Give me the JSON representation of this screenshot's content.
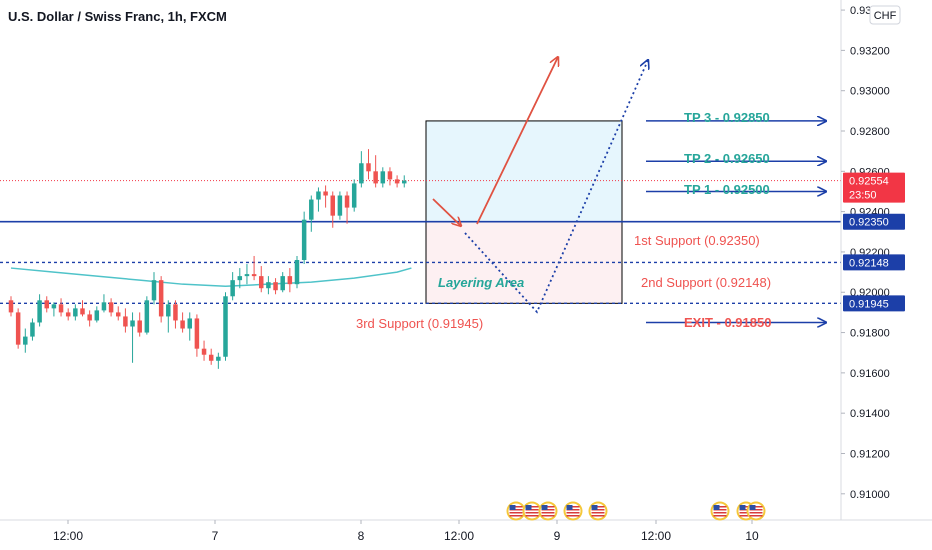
{
  "chart_data": {
    "type": "candlestick",
    "title": "U.S. Dollar / Swiss Franc, 1h, FXCM",
    "currency_label": "CHF",
    "ylim": [
      0.9087,
      0.9345
    ],
    "y_ticks": [
      {
        "value": 0.934,
        "label": "0.93400"
      },
      {
        "value": 0.932,
        "label": "0.93200"
      },
      {
        "value": 0.93,
        "label": "0.93000"
      },
      {
        "value": 0.928,
        "label": "0.92800"
      },
      {
        "value": 0.926,
        "label": "0.92600"
      },
      {
        "value": 0.924,
        "label": "0.92400"
      },
      {
        "value": 0.922,
        "label": "0.92200"
      },
      {
        "value": 0.92,
        "label": "0.92000"
      },
      {
        "value": 0.918,
        "label": "0.91800"
      },
      {
        "value": 0.916,
        "label": "0.91600"
      },
      {
        "value": 0.914,
        "label": "0.91400"
      },
      {
        "value": 0.912,
        "label": "0.91200"
      },
      {
        "value": 0.91,
        "label": "0.91000"
      }
    ],
    "x_ticks": [
      "12:00",
      "7",
      "8",
      "12:00",
      "9",
      "12:00",
      "10"
    ],
    "current_price": {
      "value": 0.92554,
      "label": "0.92554",
      "countdown": "23:50"
    },
    "price_badges": [
      {
        "value": 0.9235,
        "label": "0.92350"
      },
      {
        "value": 0.92148,
        "label": "0.92148"
      },
      {
        "value": 0.91945,
        "label": "0.91945"
      }
    ],
    "horizontal_levels": [
      {
        "value": 0.9235,
        "style": "solid",
        "color": "#1c3fa8"
      },
      {
        "value": 0.92148,
        "style": "dashed",
        "color": "#1c3fa8"
      },
      {
        "value": 0.91945,
        "style": "dashed",
        "color": "#1c3fa8"
      }
    ],
    "candles": [
      {
        "o": 0.9196,
        "h": 0.9198,
        "l": 0.9188,
        "c": 0.919
      },
      {
        "o": 0.919,
        "h": 0.9192,
        "l": 0.9172,
        "c": 0.9174
      },
      {
        "o": 0.9174,
        "h": 0.9182,
        "l": 0.917,
        "c": 0.9178
      },
      {
        "o": 0.9178,
        "h": 0.9187,
        "l": 0.9176,
        "c": 0.9185
      },
      {
        "o": 0.9185,
        "h": 0.9199,
        "l": 0.9183,
        "c": 0.9196
      },
      {
        "o": 0.9196,
        "h": 0.9198,
        "l": 0.919,
        "c": 0.9192
      },
      {
        "o": 0.9192,
        "h": 0.9195,
        "l": 0.9188,
        "c": 0.9194
      },
      {
        "o": 0.9194,
        "h": 0.9197,
        "l": 0.9188,
        "c": 0.919
      },
      {
        "o": 0.919,
        "h": 0.9192,
        "l": 0.9186,
        "c": 0.9188
      },
      {
        "o": 0.9188,
        "h": 0.9194,
        "l": 0.9186,
        "c": 0.9192
      },
      {
        "o": 0.9192,
        "h": 0.9196,
        "l": 0.9188,
        "c": 0.9189
      },
      {
        "o": 0.9189,
        "h": 0.9191,
        "l": 0.9183,
        "c": 0.9186
      },
      {
        "o": 0.9186,
        "h": 0.9193,
        "l": 0.9185,
        "c": 0.9191
      },
      {
        "o": 0.9191,
        "h": 0.9199,
        "l": 0.919,
        "c": 0.9195
      },
      {
        "o": 0.9195,
        "h": 0.9197,
        "l": 0.9188,
        "c": 0.919
      },
      {
        "o": 0.919,
        "h": 0.9193,
        "l": 0.9186,
        "c": 0.9188
      },
      {
        "o": 0.9188,
        "h": 0.9192,
        "l": 0.918,
        "c": 0.9183
      },
      {
        "o": 0.9183,
        "h": 0.919,
        "l": 0.9165,
        "c": 0.9186
      },
      {
        "o": 0.9186,
        "h": 0.919,
        "l": 0.9178,
        "c": 0.918
      },
      {
        "o": 0.918,
        "h": 0.9198,
        "l": 0.9179,
        "c": 0.9196
      },
      {
        "o": 0.9196,
        "h": 0.921,
        "l": 0.9194,
        "c": 0.9206
      },
      {
        "o": 0.9206,
        "h": 0.9208,
        "l": 0.9185,
        "c": 0.9188
      },
      {
        "o": 0.9188,
        "h": 0.9196,
        "l": 0.918,
        "c": 0.9194
      },
      {
        "o": 0.9194,
        "h": 0.9196,
        "l": 0.9182,
        "c": 0.9186
      },
      {
        "o": 0.9186,
        "h": 0.919,
        "l": 0.918,
        "c": 0.9182
      },
      {
        "o": 0.9182,
        "h": 0.919,
        "l": 0.9176,
        "c": 0.9187
      },
      {
        "o": 0.9187,
        "h": 0.9189,
        "l": 0.9168,
        "c": 0.9172
      },
      {
        "o": 0.9172,
        "h": 0.9176,
        "l": 0.9166,
        "c": 0.9169
      },
      {
        "o": 0.9169,
        "h": 0.9172,
        "l": 0.9164,
        "c": 0.9166
      },
      {
        "o": 0.9166,
        "h": 0.917,
        "l": 0.9162,
        "c": 0.9168
      },
      {
        "o": 0.9168,
        "h": 0.92,
        "l": 0.9166,
        "c": 0.9198
      },
      {
        "o": 0.9198,
        "h": 0.921,
        "l": 0.9196,
        "c": 0.9206
      },
      {
        "o": 0.9206,
        "h": 0.9212,
        "l": 0.9202,
        "c": 0.9208
      },
      {
        "o": 0.9208,
        "h": 0.9214,
        "l": 0.9204,
        "c": 0.9209
      },
      {
        "o": 0.9209,
        "h": 0.9218,
        "l": 0.9206,
        "c": 0.9208
      },
      {
        "o": 0.9208,
        "h": 0.9213,
        "l": 0.92,
        "c": 0.9202
      },
      {
        "o": 0.9202,
        "h": 0.9208,
        "l": 0.9199,
        "c": 0.9205
      },
      {
        "o": 0.9205,
        "h": 0.9207,
        "l": 0.9199,
        "c": 0.9201
      },
      {
        "o": 0.9201,
        "h": 0.921,
        "l": 0.92,
        "c": 0.9208
      },
      {
        "o": 0.9208,
        "h": 0.9212,
        "l": 0.92,
        "c": 0.9204
      },
      {
        "o": 0.9204,
        "h": 0.9218,
        "l": 0.9202,
        "c": 0.9216
      },
      {
        "o": 0.9216,
        "h": 0.924,
        "l": 0.9214,
        "c": 0.9236
      },
      {
        "o": 0.9236,
        "h": 0.9248,
        "l": 0.923,
        "c": 0.9246
      },
      {
        "o": 0.9246,
        "h": 0.9252,
        "l": 0.924,
        "c": 0.925
      },
      {
        "o": 0.925,
        "h": 0.9253,
        "l": 0.9242,
        "c": 0.9248
      },
      {
        "o": 0.9248,
        "h": 0.925,
        "l": 0.9232,
        "c": 0.9238
      },
      {
        "o": 0.9238,
        "h": 0.925,
        "l": 0.9236,
        "c": 0.9248
      },
      {
        "o": 0.9248,
        "h": 0.925,
        "l": 0.9234,
        "c": 0.9242
      },
      {
        "o": 0.9242,
        "h": 0.9256,
        "l": 0.924,
        "c": 0.9254
      },
      {
        "o": 0.9254,
        "h": 0.927,
        "l": 0.9252,
        "c": 0.9264
      },
      {
        "o": 0.9264,
        "h": 0.9271,
        "l": 0.9256,
        "c": 0.926
      },
      {
        "o": 0.926,
        "h": 0.9268,
        "l": 0.9252,
        "c": 0.9254
      },
      {
        "o": 0.9254,
        "h": 0.9262,
        "l": 0.9252,
        "c": 0.926
      },
      {
        "o": 0.926,
        "h": 0.9262,
        "l": 0.9253,
        "c": 0.9256
      },
      {
        "o": 0.9256,
        "h": 0.9258,
        "l": 0.9252,
        "c": 0.9254
      },
      {
        "o": 0.9254,
        "h": 0.9258,
        "l": 0.9252,
        "c": 0.92554
      }
    ],
    "moving_average": {
      "color": "#4fc3c9",
      "points": [
        [
          0,
          0.9212
        ],
        [
          6,
          0.921
        ],
        [
          12,
          0.9208
        ],
        [
          18,
          0.9206
        ],
        [
          24,
          0.9204
        ],
        [
          30,
          0.9203
        ],
        [
          36,
          0.9204
        ],
        [
          42,
          0.9205
        ],
        [
          48,
          0.9207
        ],
        [
          54,
          0.921
        ],
        [
          56,
          0.9212
        ]
      ]
    },
    "zone": {
      "top": 0.9285,
      "mid": 0.9235,
      "bottom": 0.91945,
      "upper_color": "#e6f6fd",
      "lower_color": "#fdf0f2"
    },
    "annotations": {
      "layering_area": "Layering Area",
      "support_1": "1st Support (0.92350)",
      "support_2": "2nd Support (0.92148)",
      "support_3": "3rd Support (0.91945)",
      "tp3": "TP 3 - 0.92850",
      "tp2": "TP 2 - 0.92650",
      "tp1": "TP 1 - 0.92500",
      "exit": "EXIT - 0.91850"
    },
    "targets": [
      {
        "key": "tp3",
        "value": 0.9285,
        "color": "#26a69a"
      },
      {
        "key": "tp2",
        "value": 0.9265,
        "color": "#26a69a"
      },
      {
        "key": "tp1",
        "value": 0.925,
        "color": "#26a69a"
      },
      {
        "key": "exit",
        "value": 0.9185,
        "color": "#ef5350"
      }
    ],
    "colors": {
      "up": "#26a69a",
      "down": "#ef5350",
      "level": "#1c3fa8",
      "current_badge": "#f23645",
      "projection_red": "#e05242",
      "projection_blue": "#1c3fa8"
    }
  }
}
